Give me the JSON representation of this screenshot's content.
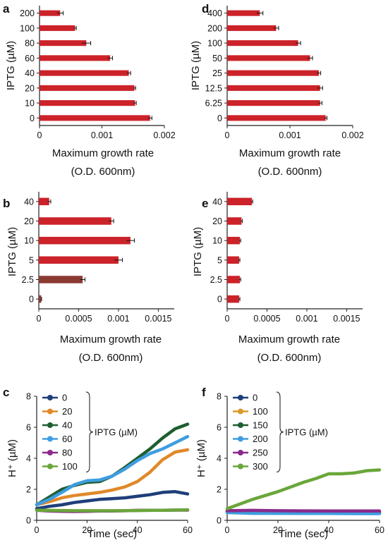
{
  "chart_data": [
    {
      "id": "a",
      "type": "bar",
      "orientation": "horizontal",
      "panel_label": "a",
      "categories": [
        "0",
        "10",
        "20",
        "40",
        "60",
        "80",
        "100",
        "200"
      ],
      "values": [
        0.00177,
        0.00153,
        0.00152,
        0.00143,
        0.00113,
        0.00075,
        0.00057,
        0.00033
      ],
      "errors": [
        3e-05,
        2e-05,
        2e-05,
        3e-05,
        4e-05,
        7e-05,
        2e-05,
        5e-05
      ],
      "xlabel": "Maximum growth rate\n(O.D. 600nm)",
      "ylabel": "IPTG (µM)",
      "xlim": [
        0,
        0.002
      ],
      "xticks": [
        "0",
        "0.001",
        "0.002"
      ],
      "xtick_values": [
        0,
        0.001,
        0.002
      ],
      "bar_color": "#cc2229"
    },
    {
      "id": "d",
      "type": "bar",
      "orientation": "horizontal",
      "panel_label": "d",
      "categories": [
        "0",
        "6.25",
        "12.5",
        "25",
        "50",
        "100",
        "200",
        "400"
      ],
      "values": [
        0.00157,
        0.00148,
        0.00148,
        0.00146,
        0.00132,
        0.00113,
        0.00078,
        0.00052
      ],
      "errors": [
        2e-05,
        3e-05,
        4e-05,
        3e-05,
        4e-05,
        4e-05,
        4e-05,
        5e-05
      ],
      "xlabel": "Maximum growth rate\n(O.D. 600nm)",
      "ylabel": "IPTG (µM)",
      "xlim": [
        0,
        0.002
      ],
      "xticks": [
        "0",
        "0.001",
        "0.002"
      ],
      "xtick_values": [
        0,
        0.001,
        0.002
      ],
      "bar_color": "#cc2229"
    },
    {
      "id": "b",
      "type": "bar",
      "orientation": "horizontal",
      "panel_label": "b",
      "categories": [
        "0",
        "2.5",
        "5",
        "10",
        "20",
        "40"
      ],
      "values": [
        3e-05,
        0.00055,
        0.001,
        0.00115,
        0.00091,
        0.00013
      ],
      "errors": [
        5e-06,
        3e-05,
        5e-05,
        5e-05,
        3e-05,
        2e-05
      ],
      "bar_colors": [
        "#8b3a32",
        "#8b3a32",
        "#cc2229",
        "#cc2229",
        "#cc2229",
        "#cc2229"
      ],
      "xlabel": "Maximum growth rate\n(O.D. 600nm)",
      "ylabel": "IPTG (µM)",
      "xlim": [
        0,
        0.0017
      ],
      "xticks": [
        "0",
        "0.0005",
        "0.001",
        "0.0015"
      ],
      "xtick_values": [
        0,
        0.0005,
        0.001,
        0.0015
      ],
      "bar_color": "#cc2229"
    },
    {
      "id": "e",
      "type": "bar",
      "orientation": "horizontal",
      "panel_label": "e",
      "categories": [
        "0",
        "2.5",
        "5",
        "10",
        "20",
        "40"
      ],
      "values": [
        0.00015,
        0.00016,
        0.00015,
        0.00016,
        0.00018,
        0.00031
      ],
      "errors": [
        1e-05,
        1e-05,
        1e-05,
        1e-05,
        1e-05,
        1e-05
      ],
      "xlabel": "Maximum growth rate\n(O.D. 600nm)",
      "ylabel": "IPTG (µM)",
      "xlim": [
        0,
        0.0017
      ],
      "xticks": [
        "0",
        "0.0005",
        "0.001",
        "0.0015"
      ],
      "xtick_values": [
        0,
        0.0005,
        0.001,
        0.0015
      ],
      "bar_color": "#cc2229"
    },
    {
      "id": "c",
      "type": "line",
      "panel_label": "c",
      "xlabel": "Time (sec)",
      "ylabel": "H⁺ (µM)",
      "xlim": [
        0,
        60
      ],
      "ylim": [
        0,
        8
      ],
      "xticks": [
        0,
        20,
        40,
        60
      ],
      "yticks": [
        0,
        2,
        4,
        6,
        8
      ],
      "legend_title": "IPTG (µM)",
      "legend_position": "top-left",
      "series": [
        {
          "name": "0",
          "color": "#1f3f7a",
          "x": [
            0,
            5,
            10,
            15,
            20,
            25,
            30,
            35,
            40,
            45,
            50,
            55,
            60
          ],
          "y": [
            0.75,
            0.9,
            1.0,
            1.15,
            1.25,
            1.35,
            1.4,
            1.45,
            1.55,
            1.65,
            1.8,
            1.85,
            1.7
          ]
        },
        {
          "name": "20",
          "color": "#e0892a",
          "x": [
            0,
            5,
            10,
            15,
            20,
            25,
            30,
            35,
            40,
            45,
            50,
            55,
            60
          ],
          "y": [
            1.0,
            1.2,
            1.45,
            1.6,
            1.7,
            1.8,
            1.95,
            2.15,
            2.5,
            3.1,
            3.9,
            4.4,
            4.55
          ]
        },
        {
          "name": "40",
          "color": "#1e5e30",
          "x": [
            0,
            5,
            10,
            15,
            20,
            25,
            30,
            35,
            40,
            45,
            50,
            55,
            60
          ],
          "y": [
            1.0,
            1.5,
            2.0,
            2.25,
            2.45,
            2.5,
            2.85,
            3.4,
            4.0,
            4.6,
            5.3,
            5.9,
            6.2
          ]
        },
        {
          "name": "60",
          "color": "#3f9de0",
          "x": [
            0,
            5,
            10,
            15,
            20,
            25,
            30,
            35,
            40,
            45,
            50,
            55,
            60
          ],
          "y": [
            1.0,
            1.35,
            1.8,
            2.3,
            2.55,
            2.6,
            2.85,
            3.3,
            3.85,
            4.3,
            4.6,
            5.0,
            5.4
          ]
        },
        {
          "name": "80",
          "color": "#8b2a8b",
          "x": [
            0,
            5,
            10,
            15,
            20,
            25,
            30,
            35,
            40,
            45,
            50,
            55,
            60
          ],
          "y": [
            0.65,
            0.6,
            0.58,
            0.57,
            0.58,
            0.6,
            0.6,
            0.62,
            0.64,
            0.65,
            0.65,
            0.66,
            0.66
          ]
        },
        {
          "name": "100",
          "color": "#6aa63a",
          "x": [
            0,
            5,
            10,
            15,
            20,
            25,
            30,
            35,
            40,
            45,
            50,
            55,
            60
          ],
          "y": [
            0.65,
            0.64,
            0.63,
            0.62,
            0.62,
            0.62,
            0.62,
            0.62,
            0.63,
            0.64,
            0.65,
            0.66,
            0.68
          ]
        }
      ]
    },
    {
      "id": "f",
      "type": "line",
      "panel_label": "f",
      "xlabel": "Time (sec)",
      "ylabel": "H⁺ (µM)",
      "xlim": [
        0,
        60
      ],
      "ylim": [
        0,
        8
      ],
      "xticks": [
        0,
        20,
        40,
        60
      ],
      "yticks": [
        0,
        2,
        4,
        6,
        8
      ],
      "legend_title": "IPTG (µM)",
      "legend_position": "top-left",
      "series": [
        {
          "name": "0",
          "color": "#1f3f7a",
          "x": [
            0,
            10,
            20,
            30,
            40,
            50,
            60
          ],
          "y": [
            0.55,
            0.5,
            0.5,
            0.48,
            0.48,
            0.47,
            0.47
          ]
        },
        {
          "name": "100",
          "color": "#d89a2a",
          "x": [
            0,
            10,
            20,
            30,
            40,
            50,
            60
          ],
          "y": [
            0.6,
            0.62,
            0.6,
            0.6,
            0.59,
            0.58,
            0.58
          ]
        },
        {
          "name": "150",
          "color": "#1e5e30",
          "x": [
            0,
            10,
            20,
            30,
            40,
            50,
            60
          ],
          "y": [
            0.55,
            0.52,
            0.52,
            0.51,
            0.5,
            0.5,
            0.5
          ]
        },
        {
          "name": "200",
          "color": "#3f9de0",
          "x": [
            0,
            10,
            20,
            30,
            40,
            50,
            60
          ],
          "y": [
            0.5,
            0.45,
            0.45,
            0.44,
            0.44,
            0.43,
            0.43
          ]
        },
        {
          "name": "250",
          "color": "#8b2a8b",
          "x": [
            0,
            10,
            20,
            30,
            40,
            50,
            60
          ],
          "y": [
            0.62,
            0.64,
            0.62,
            0.61,
            0.6,
            0.6,
            0.6
          ]
        },
        {
          "name": "300",
          "color": "#6aa63a",
          "x": [
            0,
            5,
            10,
            15,
            20,
            25,
            30,
            35,
            40,
            45,
            50,
            55,
            60
          ],
          "y": [
            0.75,
            1.05,
            1.35,
            1.6,
            1.85,
            2.15,
            2.45,
            2.7,
            3.0,
            3.0,
            3.05,
            3.2,
            3.25
          ]
        }
      ]
    }
  ]
}
